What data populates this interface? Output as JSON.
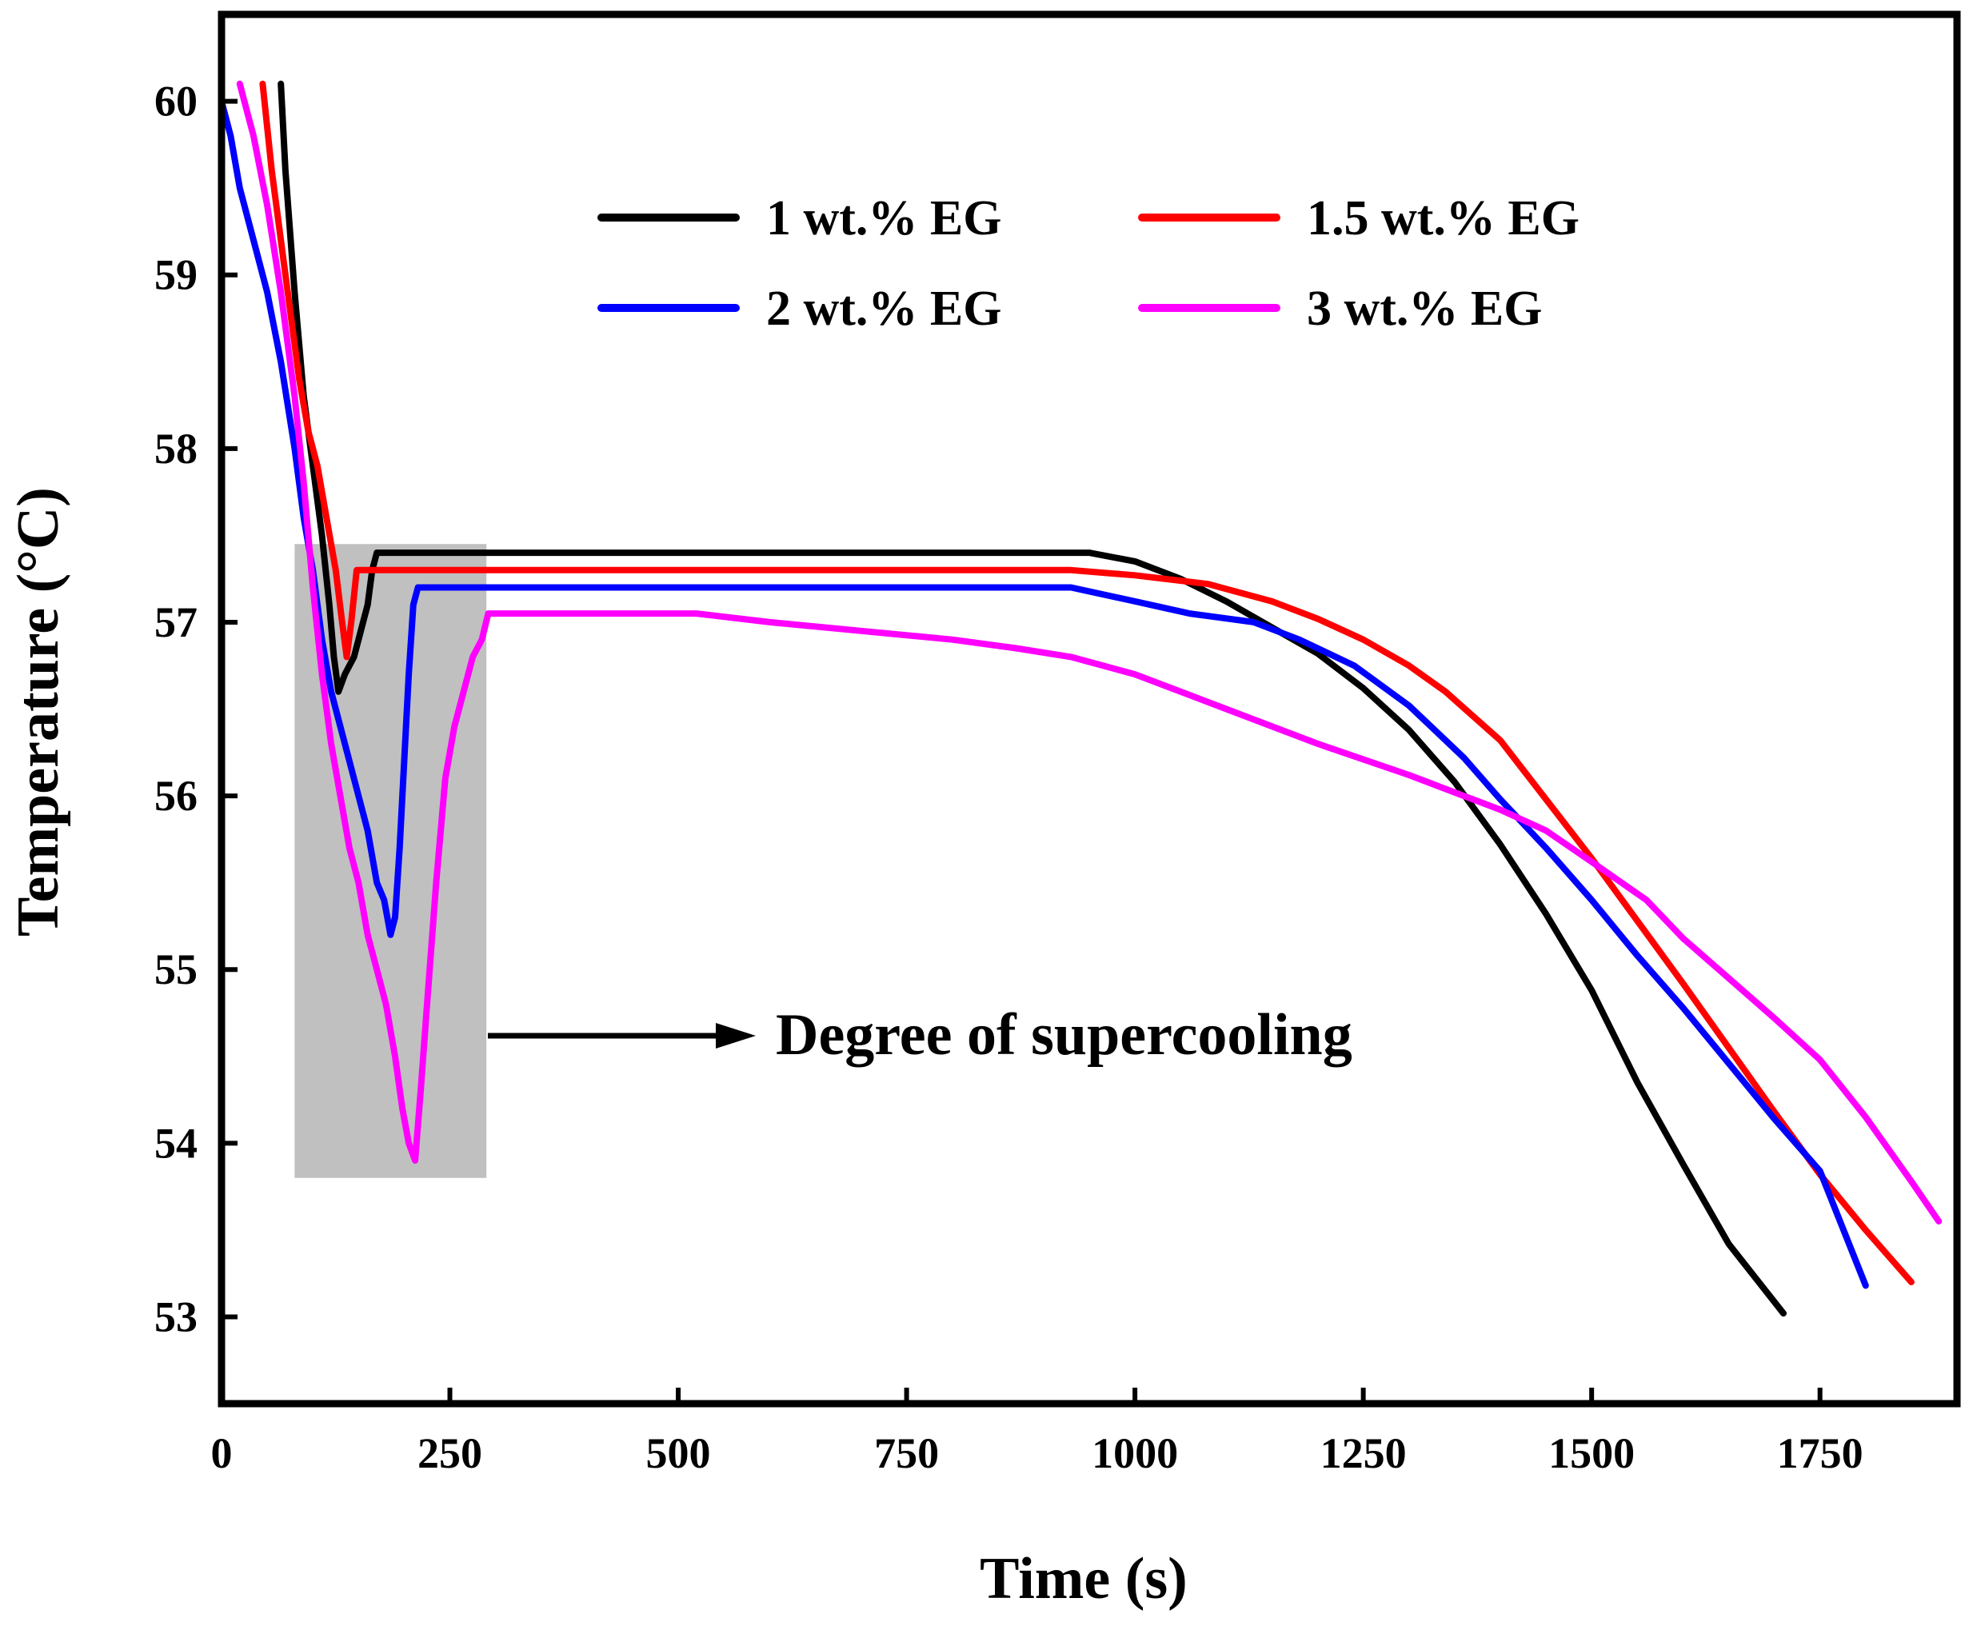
{
  "chart_data": {
    "type": "line",
    "title": "",
    "xlabel": "Time (s)",
    "ylabel": "Temperature (°C)",
    "xlim": [
      0,
      1900
    ],
    "ylim": [
      52.5,
      60.5
    ],
    "xticks": [
      0,
      250,
      500,
      750,
      1000,
      1250,
      1500,
      1750
    ],
    "yticks": [
      53,
      54,
      55,
      56,
      57,
      58,
      59,
      60
    ],
    "grid": false,
    "legend_position": "top-right",
    "series": [
      {
        "name": "1 wt.% EG",
        "color": "#000000",
        "points": [
          [
            65,
            60.1
          ],
          [
            70,
            59.6
          ],
          [
            80,
            58.9
          ],
          [
            90,
            58.3
          ],
          [
            100,
            57.9
          ],
          [
            110,
            57.5
          ],
          [
            118,
            57.1
          ],
          [
            123,
            56.8
          ],
          [
            128,
            56.6
          ],
          [
            135,
            56.7
          ],
          [
            145,
            56.8
          ],
          [
            150,
            56.9
          ],
          [
            155,
            57.0
          ],
          [
            160,
            57.1
          ],
          [
            165,
            57.3
          ],
          [
            170,
            57.4
          ],
          [
            300,
            57.4
          ],
          [
            500,
            57.4
          ],
          [
            750,
            57.4
          ],
          [
            950,
            57.4
          ],
          [
            1000,
            57.35
          ],
          [
            1050,
            57.25
          ],
          [
            1100,
            57.12
          ],
          [
            1150,
            56.97
          ],
          [
            1200,
            56.82
          ],
          [
            1250,
            56.62
          ],
          [
            1300,
            56.38
          ],
          [
            1350,
            56.08
          ],
          [
            1400,
            55.72
          ],
          [
            1450,
            55.32
          ],
          [
            1500,
            54.88
          ],
          [
            1550,
            54.35
          ],
          [
            1600,
            53.88
          ],
          [
            1650,
            53.42
          ],
          [
            1710,
            53.02
          ]
        ]
      },
      {
        "name": "1.5 wt.% EG",
        "color": "#ff0000",
        "points": [
          [
            45,
            60.1
          ],
          [
            55,
            59.6
          ],
          [
            70,
            59.0
          ],
          [
            85,
            58.4
          ],
          [
            95,
            58.1
          ],
          [
            105,
            57.9
          ],
          [
            115,
            57.6
          ],
          [
            125,
            57.3
          ],
          [
            132,
            57.0
          ],
          [
            137,
            56.8
          ],
          [
            142,
            57.0
          ],
          [
            148,
            57.3
          ],
          [
            200,
            57.3
          ],
          [
            400,
            57.3
          ],
          [
            600,
            57.3
          ],
          [
            800,
            57.3
          ],
          [
            930,
            57.3
          ],
          [
            1000,
            57.27
          ],
          [
            1080,
            57.22
          ],
          [
            1150,
            57.12
          ],
          [
            1200,
            57.02
          ],
          [
            1250,
            56.9
          ],
          [
            1300,
            56.75
          ],
          [
            1340,
            56.6
          ],
          [
            1400,
            56.32
          ],
          [
            1450,
            55.98
          ],
          [
            1500,
            55.64
          ],
          [
            1550,
            55.28
          ],
          [
            1600,
            54.92
          ],
          [
            1650,
            54.55
          ],
          [
            1700,
            54.18
          ],
          [
            1750,
            53.82
          ],
          [
            1800,
            53.5
          ],
          [
            1850,
            53.2
          ]
        ]
      },
      {
        "name": "2 wt.% EG",
        "color": "#0000ff",
        "points": [
          [
            0,
            60.0
          ],
          [
            10,
            59.8
          ],
          [
            20,
            59.5
          ],
          [
            35,
            59.2
          ],
          [
            50,
            58.9
          ],
          [
            65,
            58.5
          ],
          [
            80,
            58.0
          ],
          [
            90,
            57.6
          ],
          [
            100,
            57.3
          ],
          [
            110,
            56.9
          ],
          [
            120,
            56.6
          ],
          [
            130,
            56.4
          ],
          [
            140,
            56.2
          ],
          [
            150,
            56.0
          ],
          [
            160,
            55.8
          ],
          [
            170,
            55.5
          ],
          [
            178,
            55.4
          ],
          [
            185,
            55.2
          ],
          [
            190,
            55.3
          ],
          [
            195,
            55.7
          ],
          [
            200,
            56.2
          ],
          [
            205,
            56.7
          ],
          [
            210,
            57.1
          ],
          [
            215,
            57.2
          ],
          [
            400,
            57.2
          ],
          [
            600,
            57.2
          ],
          [
            800,
            57.2
          ],
          [
            930,
            57.2
          ],
          [
            1000,
            57.12
          ],
          [
            1060,
            57.05
          ],
          [
            1130,
            57.0
          ],
          [
            1180,
            56.9
          ],
          [
            1240,
            56.75
          ],
          [
            1300,
            56.52
          ],
          [
            1360,
            56.22
          ],
          [
            1400,
            55.98
          ],
          [
            1450,
            55.7
          ],
          [
            1500,
            55.4
          ],
          [
            1550,
            55.08
          ],
          [
            1600,
            54.78
          ],
          [
            1650,
            54.46
          ],
          [
            1700,
            54.14
          ],
          [
            1750,
            53.84
          ],
          [
            1800,
            53.18
          ]
        ]
      },
      {
        "name": "3 wt.% EG",
        "color": "#ff00ff",
        "points": [
          [
            20,
            60.1
          ],
          [
            35,
            59.8
          ],
          [
            50,
            59.4
          ],
          [
            65,
            58.9
          ],
          [
            80,
            58.3
          ],
          [
            90,
            57.8
          ],
          [
            100,
            57.2
          ],
          [
            110,
            56.7
          ],
          [
            120,
            56.3
          ],
          [
            130,
            56.0
          ],
          [
            140,
            55.7
          ],
          [
            150,
            55.5
          ],
          [
            160,
            55.2
          ],
          [
            170,
            55.0
          ],
          [
            180,
            54.8
          ],
          [
            190,
            54.5
          ],
          [
            198,
            54.2
          ],
          [
            205,
            54.0
          ],
          [
            212,
            53.9
          ],
          [
            218,
            54.3
          ],
          [
            225,
            54.8
          ],
          [
            235,
            55.5
          ],
          [
            245,
            56.1
          ],
          [
            255,
            56.4
          ],
          [
            265,
            56.6
          ],
          [
            275,
            56.8
          ],
          [
            285,
            56.9
          ],
          [
            292,
            57.05
          ],
          [
            400,
            57.05
          ],
          [
            520,
            57.05
          ],
          [
            600,
            57.0
          ],
          [
            700,
            56.95
          ],
          [
            800,
            56.9
          ],
          [
            870,
            56.85
          ],
          [
            930,
            56.8
          ],
          [
            1000,
            56.7
          ],
          [
            1050,
            56.6
          ],
          [
            1100,
            56.5
          ],
          [
            1200,
            56.3
          ],
          [
            1300,
            56.12
          ],
          [
            1350,
            56.02
          ],
          [
            1400,
            55.92
          ],
          [
            1450,
            55.8
          ],
          [
            1500,
            55.62
          ],
          [
            1560,
            55.4
          ],
          [
            1600,
            55.18
          ],
          [
            1650,
            54.95
          ],
          [
            1700,
            54.72
          ],
          [
            1750,
            54.48
          ],
          [
            1800,
            54.15
          ],
          [
            1850,
            53.78
          ],
          [
            1880,
            53.55
          ]
        ]
      }
    ],
    "annotation": {
      "text": "Degree of supercooling",
      "region_color": "#c0c0c0",
      "region_x": [
        80,
        290
      ],
      "region_y": [
        53.8,
        57.45
      ]
    }
  }
}
